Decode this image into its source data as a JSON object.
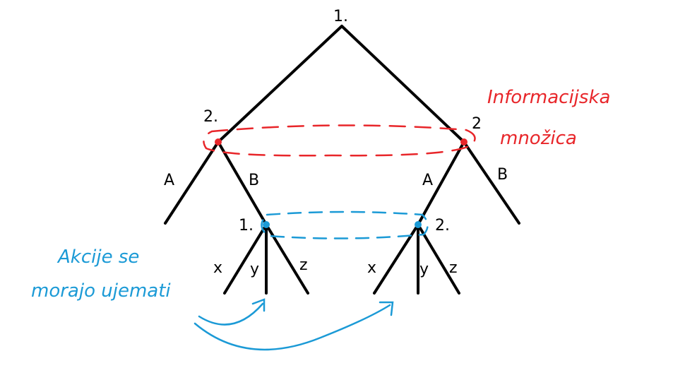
{
  "colors": {
    "ink": "#000000",
    "red": "#e8262a",
    "blue": "#1b9ad6"
  },
  "tree": {
    "root_label": "1.",
    "left_player_label": "2.",
    "right_player_label": "2",
    "left_left_action": "A",
    "left_right_action": "B",
    "right_left_action": "A",
    "right_right_action": "B",
    "sub_left_player_label": "1.",
    "sub_right_player_label": "2.",
    "sub_left_x": "x",
    "sub_left_y": "y",
    "sub_left_z": "z",
    "sub_right_x": "x",
    "sub_right_y": "y",
    "sub_right_z": "z"
  },
  "annotations": {
    "red_line_1": "Informacijska",
    "red_line_2": "množica",
    "blue_line_1": "Akcije se",
    "blue_line_2": "morajo ujemati"
  }
}
